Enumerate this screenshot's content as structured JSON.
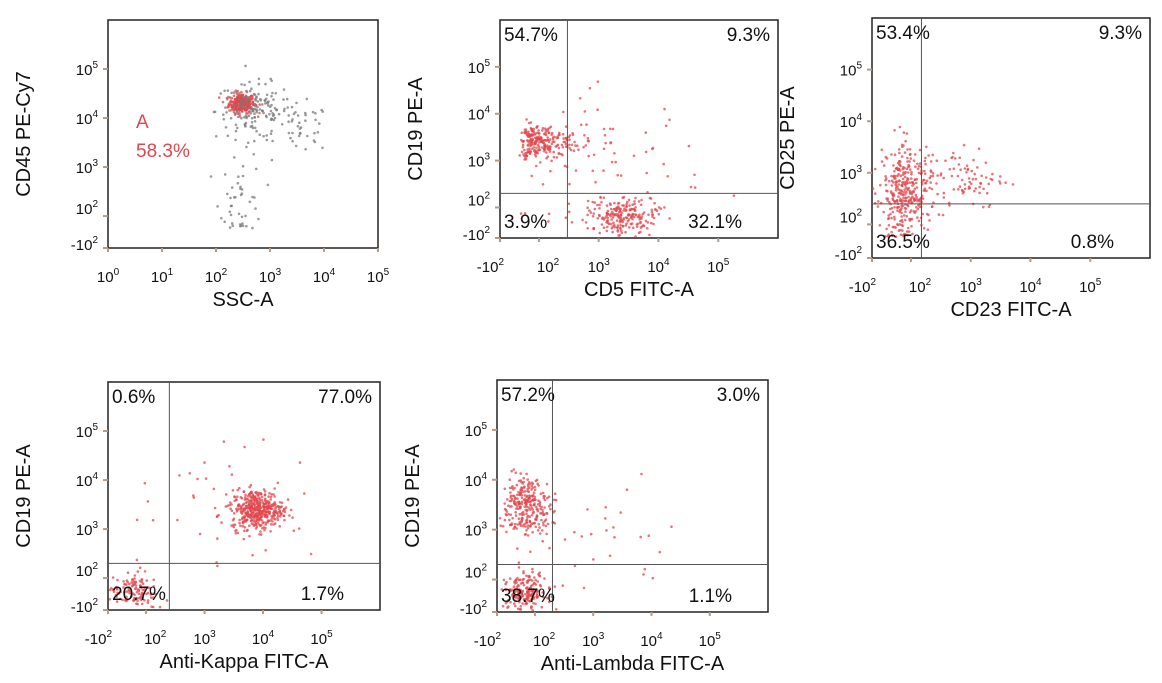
{
  "colors": {
    "event_red": "#e0474c",
    "event_grey": "#7a7a7a",
    "gate_line": "#555555",
    "frame": "#222222",
    "gate_label": "#e0474c",
    "text": "#111111",
    "axis_tick_mark": "#b59a86"
  },
  "chart_data": [
    {
      "type": "scatter",
      "xlabel": "SSC-A",
      "ylabel": "CD45 PE-Cy7",
      "xscale": "log",
      "xlim": [
        1,
        100000
      ],
      "xticks": [
        {
          "value": 1,
          "base": "10",
          "exp": "0"
        },
        {
          "value": 10,
          "base": "10",
          "exp": "1"
        },
        {
          "value": 100,
          "base": "10",
          "exp": "2"
        },
        {
          "value": 1000,
          "base": "10",
          "exp": "3"
        },
        {
          "value": 10000,
          "base": "10",
          "exp": "4"
        },
        {
          "value": 100000,
          "base": "10",
          "exp": "5"
        }
      ],
      "yscale": "biexponential",
      "ylim": [
        -100,
        100000
      ],
      "yticks": [
        {
          "value": 100000,
          "base": "10",
          "exp": "5"
        },
        {
          "value": 10000,
          "base": "10",
          "exp": "4"
        },
        {
          "value": 1000,
          "base": "10",
          "exp": "3"
        },
        {
          "value": 100,
          "base": "10",
          "exp": "2"
        },
        {
          "value": -100,
          "base": "-10",
          "exp": "2"
        }
      ],
      "quadrant_lines": null,
      "gate": {
        "label": "A",
        "percent": "58.3%"
      },
      "populations": [
        {
          "name": "gated",
          "color": "red",
          "x": 300,
          "y": 20000,
          "spread_x": 0.12,
          "spread_y": 0.1,
          "count": 260
        },
        {
          "name": "ungated-main",
          "color": "grey",
          "x": 500,
          "y": 14000,
          "spread_x": 0.35,
          "spread_y": 0.28,
          "count": 150
        },
        {
          "name": "ungated-side",
          "color": "grey",
          "x": 4000,
          "y": 6000,
          "spread_x": 0.25,
          "spread_y": 0.25,
          "count": 40
        },
        {
          "name": "debris",
          "color": "grey",
          "x": 300,
          "y": 200,
          "spread_x": 0.2,
          "spread_y": 0.5,
          "count": 45
        }
      ]
    },
    {
      "type": "scatter",
      "xlabel": "CD5 FITC-A",
      "ylabel": "CD19 PE-A",
      "xscale": "biexponential",
      "xlim": [
        -100,
        100000
      ],
      "xticks": [
        {
          "value": -100,
          "base": "-10",
          "exp": "2"
        },
        {
          "value": 100,
          "base": "10",
          "exp": "2"
        },
        {
          "value": 1000,
          "base": "10",
          "exp": "3"
        },
        {
          "value": 10000,
          "base": "10",
          "exp": "4"
        },
        {
          "value": 100000,
          "base": "10",
          "exp": "5"
        }
      ],
      "yscale": "biexponential",
      "ylim": [
        -100,
        100000
      ],
      "yticks": [
        {
          "value": 100000,
          "base": "10",
          "exp": "5"
        },
        {
          "value": 10000,
          "base": "10",
          "exp": "4"
        },
        {
          "value": 1000,
          "base": "10",
          "exp": "3"
        },
        {
          "value": 100,
          "base": "10",
          "exp": "2"
        },
        {
          "value": -100,
          "base": "-10",
          "exp": "2"
        }
      ],
      "quadrant_lines": {
        "x": 300,
        "y": 200
      },
      "quadrant_percents": {
        "upper_left": "54.7%",
        "upper_right": "9.3%",
        "lower_left": "3.9%",
        "lower_right": "32.1%"
      },
      "populations": [
        {
          "name": "cd19-pos",
          "color": "red",
          "x": 100,
          "y": 2500,
          "spread_x": 0.35,
          "spread_y": 0.18,
          "count": 240
        },
        {
          "name": "cd5-pos",
          "color": "red",
          "x": 2500,
          "y": 30,
          "spread_x": 0.3,
          "spread_y": 0.35,
          "count": 220
        },
        {
          "name": "scatter",
          "color": "red",
          "x": 1500,
          "y": 1000,
          "spread_x": 0.8,
          "spread_y": 0.7,
          "count": 70
        }
      ]
    },
    {
      "type": "scatter",
      "xlabel": "CD23 FITC-A",
      "ylabel": "CD25 PE-A",
      "xscale": "biexponential",
      "xlim": [
        -100,
        100000
      ],
      "xticks": [
        {
          "value": -100,
          "base": "-10",
          "exp": "2"
        },
        {
          "value": 100,
          "base": "10",
          "exp": "2"
        },
        {
          "value": 1000,
          "base": "10",
          "exp": "3"
        },
        {
          "value": 10000,
          "base": "10",
          "exp": "4"
        },
        {
          "value": 100000,
          "base": "10",
          "exp": "5"
        }
      ],
      "yscale": "biexponential",
      "ylim": [
        -100,
        100000
      ],
      "yticks": [
        {
          "value": 100000,
          "base": "10",
          "exp": "5"
        },
        {
          "value": 10000,
          "base": "10",
          "exp": "4"
        },
        {
          "value": 1000,
          "base": "10",
          "exp": "3"
        },
        {
          "value": 100,
          "base": "10",
          "exp": "2"
        },
        {
          "value": -100,
          "base": "-10",
          "exp": "2"
        }
      ],
      "quadrant_lines": {
        "x": 150,
        "y": 250
      },
      "quadrant_percents": {
        "upper_left": "53.4%",
        "upper_right": "9.3%",
        "lower_left": "36.5%",
        "lower_right": "0.8%"
      },
      "populations": [
        {
          "name": "main",
          "color": "red",
          "x": 60,
          "y": 400,
          "spread_x": 0.25,
          "spread_y": 0.45,
          "count": 320
        },
        {
          "name": "spread",
          "color": "red",
          "x": 500,
          "y": 800,
          "spread_x": 0.45,
          "spread_y": 0.3,
          "count": 110
        }
      ]
    },
    {
      "type": "scatter",
      "xlabel": "Anti-Kappa FITC-A",
      "ylabel": "CD19 PE-A",
      "xscale": "biexponential",
      "xlim": [
        -100,
        100000
      ],
      "xticks": [
        {
          "value": -100,
          "base": "-10",
          "exp": "2"
        },
        {
          "value": 100,
          "base": "10",
          "exp": "2"
        },
        {
          "value": 1000,
          "base": "10",
          "exp": "3"
        },
        {
          "value": 10000,
          "base": "10",
          "exp": "4"
        },
        {
          "value": 100000,
          "base": "10",
          "exp": "5"
        }
      ],
      "yscale": "biexponential",
      "ylim": [
        -100,
        100000
      ],
      "yticks": [
        {
          "value": 100000,
          "base": "10",
          "exp": "5"
        },
        {
          "value": 10000,
          "base": "10",
          "exp": "4"
        },
        {
          "value": 1000,
          "base": "10",
          "exp": "3"
        },
        {
          "value": 100,
          "base": "10",
          "exp": "2"
        },
        {
          "value": -100,
          "base": "-10",
          "exp": "2"
        }
      ],
      "quadrant_lines": {
        "x": 250,
        "y": 200
      },
      "quadrant_percents": {
        "upper_left": "0.6%",
        "upper_right": "77.0%",
        "lower_left": "20.7%",
        "lower_right": "1.7%"
      },
      "populations": [
        {
          "name": "kappa-pos",
          "color": "red",
          "x": 8000,
          "y": 2500,
          "spread_x": 0.22,
          "spread_y": 0.2,
          "count": 420
        },
        {
          "name": "double-neg",
          "color": "red",
          "x": 30,
          "y": 20,
          "spread_x": 0.3,
          "spread_y": 0.35,
          "count": 120
        },
        {
          "name": "scatter",
          "color": "red",
          "x": 3000,
          "y": 3000,
          "spread_x": 0.8,
          "spread_y": 0.6,
          "count": 40
        }
      ]
    },
    {
      "type": "scatter",
      "xlabel": "Anti-Lambda FITC-A",
      "ylabel": "CD19 PE-A",
      "xscale": "biexponential",
      "xlim": [
        -100,
        100000
      ],
      "xticks": [
        {
          "value": -100,
          "base": "-10",
          "exp": "2"
        },
        {
          "value": 100,
          "base": "10",
          "exp": "2"
        },
        {
          "value": 1000,
          "base": "10",
          "exp": "3"
        },
        {
          "value": 10000,
          "base": "10",
          "exp": "4"
        },
        {
          "value": 100000,
          "base": "10",
          "exp": "5"
        }
      ],
      "yscale": "biexponential",
      "ylim": [
        -100,
        100000
      ],
      "yticks": [
        {
          "value": 100000,
          "base": "10",
          "exp": "5"
        },
        {
          "value": 10000,
          "base": "10",
          "exp": "4"
        },
        {
          "value": 1000,
          "base": "10",
          "exp": "3"
        },
        {
          "value": 100,
          "base": "10",
          "exp": "2"
        },
        {
          "value": -100,
          "base": "-10",
          "exp": "2"
        }
      ],
      "quadrant_lines": {
        "x": 200,
        "y": 200
      },
      "quadrant_percents": {
        "upper_left": "57.2%",
        "upper_right": "3.0%",
        "lower_left": "38.7%",
        "lower_right": "1.1%"
      },
      "populations": [
        {
          "name": "cd19-pos",
          "color": "red",
          "x": 60,
          "y": 3000,
          "spread_x": 0.25,
          "spread_y": 0.3,
          "count": 280
        },
        {
          "name": "double-neg",
          "color": "red",
          "x": 40,
          "y": 20,
          "spread_x": 0.3,
          "spread_y": 0.35,
          "count": 200
        },
        {
          "name": "scatter",
          "color": "red",
          "x": 1000,
          "y": 500,
          "spread_x": 0.8,
          "spread_y": 0.6,
          "count": 30
        }
      ]
    }
  ]
}
